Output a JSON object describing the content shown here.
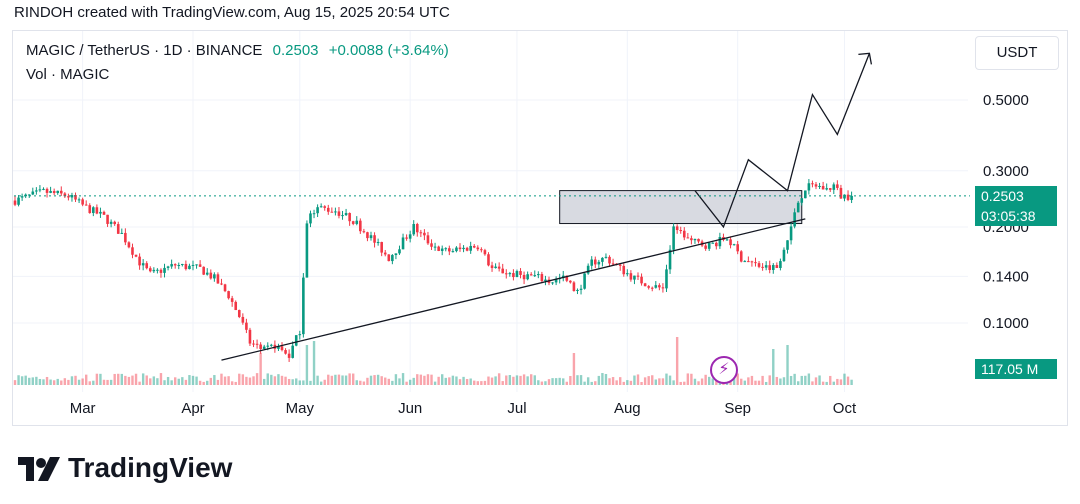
{
  "header": {
    "attribution": "RINDOH created with TradingView.com, Aug 15, 2025 20:54 UTC"
  },
  "legend": {
    "symbol": "MAGIC / TetherUS · 1D · BINANCE",
    "price": "0.2503",
    "change": "+0.0088 (+3.64%)",
    "volume_label": "Vol · MAGIC"
  },
  "currency_button": "USDT",
  "price_tag": {
    "price": "0.2503",
    "countdown": "03:05:38"
  },
  "volume_tag": "117.05 M",
  "brand": {
    "name": "TradingView"
  },
  "colors": {
    "up": "#089981",
    "down": "#f23645",
    "line": "#131722",
    "zone": "#d1d4dc",
    "bolt": "#9c27b0"
  },
  "icons": {
    "lightning": "lightning-icon",
    "logo": "tradingview-logo-icon"
  },
  "chart_data": {
    "type": "candlestick",
    "title": "",
    "xlabel": "",
    "ylabel": "",
    "scale": "log",
    "ylim": [
      0.062,
      0.78
    ],
    "x_ticks": [
      "Mar",
      "Apr",
      "May",
      "Jun",
      "Jul",
      "Aug",
      "Sep",
      "Oct"
    ],
    "y_ticks": [
      0.5,
      0.3,
      0.2,
      0.14,
      0.1
    ],
    "y_tick_labels": [
      "0.5000",
      "0.3000",
      "0.2000",
      "0.1400",
      "0.1000"
    ],
    "start_date": "2025-02-10",
    "close_path": [
      [
        0,
        0.242
      ],
      [
        8,
        0.258
      ],
      [
        15,
        0.25
      ],
      [
        20,
        0.23
      ],
      [
        25,
        0.215
      ],
      [
        30,
        0.19
      ],
      [
        35,
        0.155
      ],
      [
        38,
        0.142
      ],
      [
        45,
        0.152
      ],
      [
        52,
        0.148
      ],
      [
        56,
        0.138
      ],
      [
        60,
        0.122
      ],
      [
        63,
        0.105
      ],
      [
        66,
        0.087
      ],
      [
        70,
        0.082
      ],
      [
        73,
        0.085
      ],
      [
        77,
        0.079
      ],
      [
        80,
        0.095
      ],
      [
        82,
        0.21
      ],
      [
        85,
        0.23
      ],
      [
        90,
        0.225
      ],
      [
        95,
        0.21
      ],
      [
        100,
        0.185
      ],
      [
        105,
        0.16
      ],
      [
        108,
        0.175
      ],
      [
        112,
        0.2
      ],
      [
        116,
        0.18
      ],
      [
        120,
        0.168
      ],
      [
        125,
        0.17
      ],
      [
        130,
        0.175
      ],
      [
        134,
        0.148
      ],
      [
        140,
        0.142
      ],
      [
        146,
        0.14
      ],
      [
        150,
        0.135
      ],
      [
        154,
        0.138
      ],
      [
        158,
        0.125
      ],
      [
        162,
        0.155
      ],
      [
        166,
        0.16
      ],
      [
        170,
        0.148
      ],
      [
        174,
        0.138
      ],
      [
        178,
        0.132
      ],
      [
        182,
        0.128
      ],
      [
        185,
        0.2
      ],
      [
        190,
        0.18
      ],
      [
        195,
        0.175
      ],
      [
        200,
        0.185
      ],
      [
        204,
        0.16
      ],
      [
        208,
        0.152
      ],
      [
        212,
        0.148
      ],
      [
        214,
        0.15
      ],
      [
        218,
        0.2
      ],
      [
        220,
        0.24
      ],
      [
        222,
        0.265
      ],
      [
        225,
        0.27
      ],
      [
        228,
        0.262
      ],
      [
        230,
        0.27
      ],
      [
        232,
        0.25
      ],
      [
        235,
        0.2503
      ]
    ],
    "volume_spikes": [
      [
        69,
        0.4
      ],
      [
        82,
        0.5
      ],
      [
        84,
        0.55
      ],
      [
        157,
        0.4
      ],
      [
        186,
        0.6
      ],
      [
        213,
        0.45
      ],
      [
        217,
        0.5
      ]
    ],
    "drawings": {
      "support_line": [
        [
          "2025-04-09",
          0.0765
        ],
        [
          "2025-09-20",
          0.212
        ]
      ],
      "resistance_zone": {
        "x0": "2025-07-13",
        "x1": "2025-09-19",
        "y0": 0.205,
        "y1": 0.26
      },
      "projection": [
        [
          "2025-08-20",
          0.26
        ],
        [
          "2025-08-28",
          0.2
        ],
        [
          "2025-09-04",
          0.325
        ],
        [
          "2025-09-15",
          0.26
        ],
        [
          "2025-09-22",
          0.52
        ],
        [
          "2025-09-29",
          0.39
        ],
        [
          "2025-10-08",
          0.7
        ]
      ],
      "last_price_line": 0.2503
    }
  }
}
